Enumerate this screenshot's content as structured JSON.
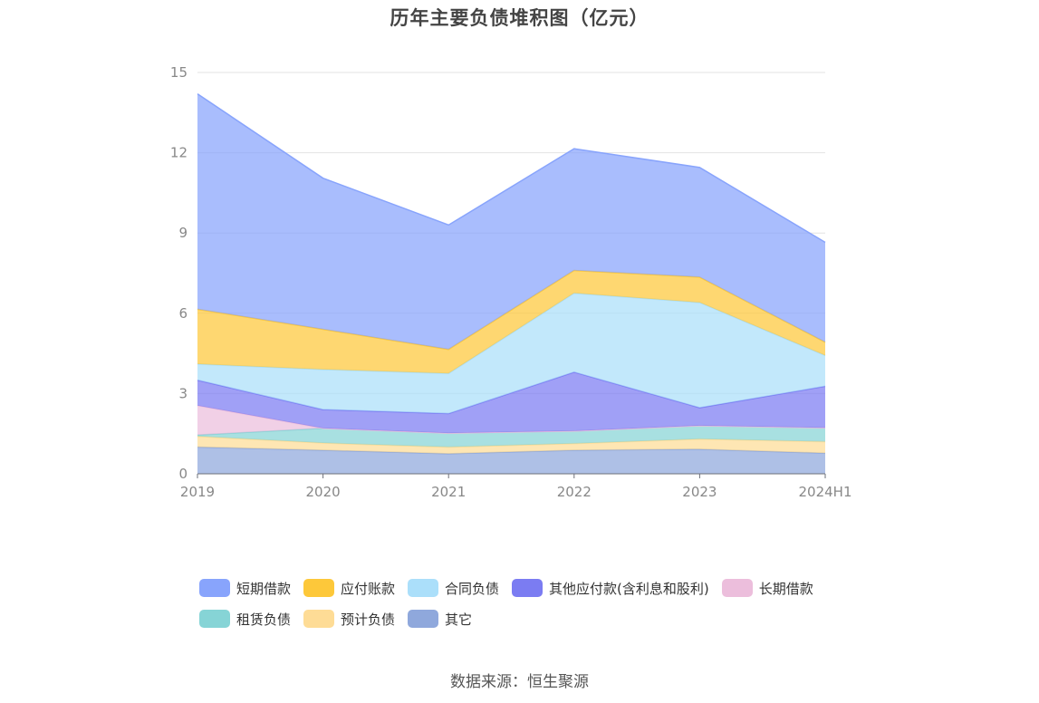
{
  "chart_data": {
    "type": "area",
    "stacked": true,
    "title": "历年主要负债堆积图（亿元）",
    "categories": [
      "2019",
      "2020",
      "2021",
      "2022",
      "2023",
      "2024H1"
    ],
    "ylim": [
      0,
      15
    ],
    "yticks": [
      0,
      3,
      6,
      9,
      12,
      15
    ],
    "grid": true,
    "legend_position": "bottom",
    "series": [
      {
        "name": "其它",
        "color": "#8fa8dc",
        "values": [
          1.0,
          0.88,
          0.75,
          0.88,
          0.92,
          0.77
        ]
      },
      {
        "name": "预计负债",
        "color": "#fedc96",
        "values": [
          0.4,
          0.27,
          0.25,
          0.25,
          0.38,
          0.43
        ]
      },
      {
        "name": "租赁负债",
        "color": "#86d4d6",
        "values": [
          0.05,
          0.55,
          0.52,
          0.47,
          0.5,
          0.52
        ]
      },
      {
        "name": "长期借款",
        "color": "#ecbedc",
        "values": [
          1.1,
          0.0,
          0.0,
          0.0,
          0.0,
          0.0
        ]
      },
      {
        "name": "其他应付款(含利息和股利)",
        "color": "#7b7cf2",
        "values": [
          0.95,
          0.7,
          0.73,
          2.2,
          0.67,
          1.55
        ]
      },
      {
        "name": "合同负债",
        "color": "#abdffa",
        "values": [
          0.6,
          1.5,
          1.5,
          2.95,
          3.93,
          1.15
        ]
      },
      {
        "name": "应付账款",
        "color": "#fdc83a",
        "values": [
          2.05,
          1.5,
          0.9,
          0.85,
          0.95,
          0.5
        ]
      },
      {
        "name": "短期借款",
        "color": "#88a4fc",
        "values": [
          8.05,
          5.65,
          4.65,
          4.55,
          4.1,
          3.73
        ]
      }
    ]
  },
  "legend": [
    {
      "label": "短期借款",
      "color": "#88a4fc"
    },
    {
      "label": "应付账款",
      "color": "#fdc83a"
    },
    {
      "label": "合同负债",
      "color": "#abdffa"
    },
    {
      "label": "其他应付款(含利息和股利)",
      "color": "#7b7cf2"
    },
    {
      "label": "长期借款",
      "color": "#ecbedc"
    },
    {
      "label": "租赁负债",
      "color": "#86d4d6"
    },
    {
      "label": "预计负债",
      "color": "#fedc96"
    },
    {
      "label": "其它",
      "color": "#8fa8dc"
    }
  ],
  "source": "数据来源：恒生聚源"
}
